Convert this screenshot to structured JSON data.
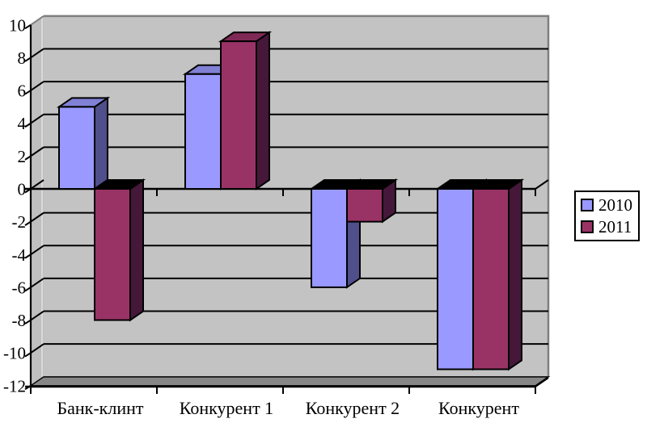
{
  "chart_data": {
    "type": "bar",
    "style": "3d-clustered-column",
    "title": "",
    "xlabel": "",
    "ylabel": "",
    "categories": [
      "Банк-клинт",
      "Конкурент 1",
      "Конкурент 2",
      "Конкурент"
    ],
    "series": [
      {
        "name": "2010",
        "values": [
          5,
          7,
          -6,
          -11
        ],
        "color": "#9999ff",
        "top_color": "#8080d5",
        "side_color": "#4f4f8c"
      },
      {
        "name": "2011",
        "values": [
          -8,
          9,
          -2,
          -11
        ],
        "color": "#993366",
        "top_color": "#7e2a55",
        "side_color": "#45183a"
      }
    ],
    "ylim": [
      -12,
      10
    ],
    "ytick_step": 2,
    "yticks": [
      10,
      8,
      6,
      4,
      2,
      0,
      -2,
      -4,
      -6,
      -8,
      -10,
      -12
    ],
    "grid": true,
    "legend_position": "right",
    "colors": {
      "background": "#ffffff",
      "wall": "#c3c3c3",
      "side_wall": "#bfbfbf",
      "side_wall_highlight": "#d9d9d9",
      "floor": "#878787",
      "wall_edge": "#7f7f7f",
      "gridline": "#000000",
      "axis": "#000000",
      "negative_cap": "#000000",
      "text": "#000000"
    }
  }
}
